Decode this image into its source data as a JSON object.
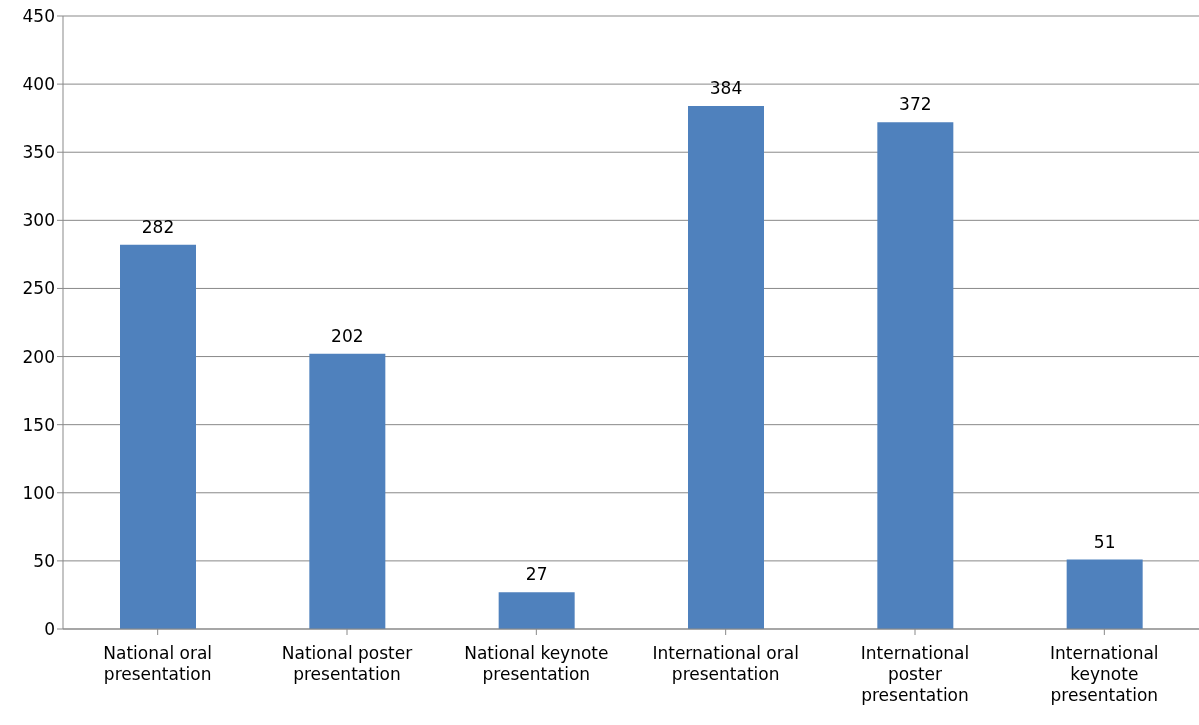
{
  "chart_data": {
    "type": "bar",
    "categories": [
      "National oral presentation",
      "National poster presentation",
      "National keynote presentation",
      "International oral presentation",
      "International poster presentation",
      "International keynote presentation"
    ],
    "values": [
      282,
      202,
      27,
      384,
      372,
      51
    ],
    "color": "#4f81bd",
    "ylim": [
      0,
      450
    ],
    "yticks": [
      0,
      50,
      100,
      150,
      200,
      250,
      300,
      350,
      400,
      450
    ],
    "grid": "y",
    "data_labels": true,
    "legend": false
  }
}
